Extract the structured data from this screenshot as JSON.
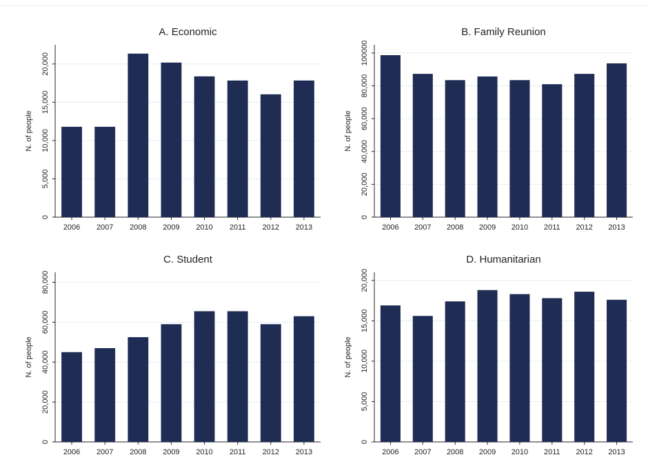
{
  "chart_data": [
    {
      "type": "bar",
      "title": "A. Economic",
      "ylabel": "N. of people",
      "categories": [
        "2006",
        "2007",
        "2008",
        "2009",
        "2010",
        "2011",
        "2012",
        "2013"
      ],
      "values": [
        11800,
        11800,
        21350,
        20180,
        18380,
        17840,
        16040,
        17840
      ],
      "color": "#1f2d54",
      "ylim": [
        0,
        22500
      ],
      "yticks": [
        0,
        {
          "value": 5000,
          "label": "5,000"
        },
        {
          "value": 10000,
          "label": "10,000"
        },
        {
          "value": 15000,
          "label": "15,000"
        },
        {
          "value": 20000,
          "label": "20,000"
        }
      ],
      "grid": true
    },
    {
      "type": "bar",
      "title": "B. Family Reunion",
      "ylabel": "N. of people",
      "categories": [
        "2006",
        "2007",
        "2008",
        "2009",
        "2010",
        "2011",
        "2012",
        "2013"
      ],
      "values": [
        98700,
        87300,
        83500,
        85700,
        83500,
        81000,
        87300,
        93700
      ],
      "color": "#1f2d54",
      "ylim": [
        0,
        105000
      ],
      "yticks": [
        0,
        {
          "value": 20000,
          "label": "20,000"
        },
        {
          "value": 40000,
          "label": "40,000"
        },
        {
          "value": 60000,
          "label": "60,000"
        },
        {
          "value": 80000,
          "label": "80,000"
        },
        100000
      ],
      "grid": true
    },
    {
      "type": "bar",
      "title": "C. Student",
      "ylabel": "N. of people",
      "categories": [
        "2006",
        "2007",
        "2008",
        "2009",
        "2010",
        "2011",
        "2012",
        "2013"
      ],
      "values": [
        45000,
        47000,
        52500,
        59000,
        65500,
        65500,
        59000,
        63000
      ],
      "color": "#1f2d54",
      "ylim": [
        0,
        85000
      ],
      "yticks": [
        0,
        {
          "value": 20000,
          "label": "20,000"
        },
        {
          "value": 40000,
          "label": "40,000"
        },
        {
          "value": 60000,
          "label": "60,000"
        },
        {
          "value": 80000,
          "label": "80,000"
        }
      ],
      "grid": true
    },
    {
      "type": "bar",
      "title": "D. Humanitarian",
      "ylabel": "N. of people",
      "categories": [
        "2006",
        "2007",
        "2008",
        "2009",
        "2010",
        "2011",
        "2012",
        "2013"
      ],
      "values": [
        16900,
        15600,
        17400,
        18800,
        18300,
        17800,
        18600,
        17600
      ],
      "color": "#1f2d54",
      "ylim": [
        0,
        21000
      ],
      "yticks": [
        0,
        {
          "value": 5000,
          "label": "5,000"
        },
        {
          "value": 10000,
          "label": "10,000"
        },
        {
          "value": 15000,
          "label": "15,000"
        },
        {
          "value": 20000,
          "label": "20,000"
        }
      ],
      "grid": true
    }
  ]
}
